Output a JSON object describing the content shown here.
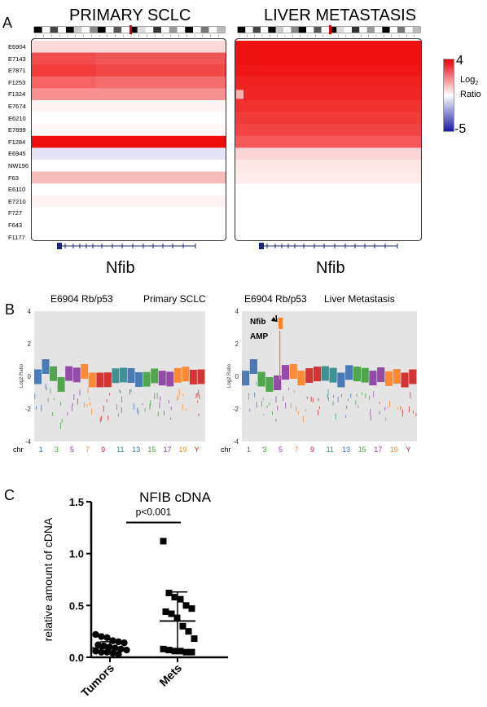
{
  "panels": {
    "a": "A",
    "b": "B",
    "c": "C"
  },
  "panelA": {
    "title_left": "PRIMARY SCLC",
    "title_right": "LIVER METASTASIS",
    "gene_left": "Nfib",
    "gene_right": "Nfib",
    "samples": [
      "E6904",
      "E7143",
      "E7871",
      "F1253",
      "F1324",
      "E7674",
      "E6210",
      "E7899",
      "F1284",
      "E6945",
      "NW196",
      "F63",
      "E6110",
      "E7210",
      "F727",
      "F643",
      "F1177"
    ],
    "legend": {
      "max": "4",
      "min": "-5",
      "label_main": "Log",
      "label_sub": "2",
      "label_ratio": "Ratio",
      "colors": {
        "high": "#e8000c",
        "mid": "#ffffff",
        "low": "#1a1aa8"
      }
    },
    "primary_colors": [
      "#fbd9d9",
      "#f24b4b",
      "#f23c3c",
      "#f56363",
      "#f89292",
      "#fff4f4",
      "#ffffff",
      "#fff7f7",
      "#ee0d0d",
      "#e4e4f6",
      "#ffffff",
      "#f8bbbb",
      "#ffffff",
      "#fff2f2",
      "#ffffff",
      "#ffffff",
      "#ffffff"
    ],
    "met_colors": [
      "#ee1111",
      "#ee1111",
      "#ee1616",
      "#ef2020",
      "#f02626",
      "#f13030",
      "#f13a3a",
      "#f24444",
      "#f45858",
      "#fbd5d5",
      "#fde6e6",
      "#fdeaea",
      "#ffffff",
      "#ffffff",
      "#ffffff",
      "#ffffff",
      "#ffffff"
    ]
  },
  "panelB": {
    "left": {
      "sample": "E6904 Rb/p53",
      "tissue": "Primary SCLC"
    },
    "right": {
      "sample": "E6904 Rb/p53",
      "tissue": "Liver Metastasis",
      "annot1": "Nfib",
      "annot2": "AMP"
    },
    "ylabel_main": "Log",
    "ylabel_sub": "2",
    "ylabel_rest": " Ratio",
    "yticks": [
      "4",
      "2",
      "0",
      "-2",
      "-4"
    ],
    "chr_label": "chr",
    "chromosomes": [
      "1",
      "3",
      "5",
      "7",
      "9",
      "11",
      "13",
      "15",
      "17",
      "19",
      "Y"
    ],
    "chrom_colors": [
      "#3a6fb0",
      "#3fa03a",
      "#8a3aa0",
      "#ff8020",
      "#d02020",
      "#2a8a8a",
      "#3a6fb0",
      "#3fa03a",
      "#8a3aa0",
      "#ff8020",
      "#d02020"
    ]
  },
  "panelC": {
    "title": "NFIB cDNA",
    "ylabel": "relative amount of cDNA",
    "pvalue": "p<0.001",
    "chart_data": {
      "type": "scatter",
      "title": "NFIB cDNA",
      "ylabel": "relative amount of cDNA",
      "ylim": [
        0,
        1.5
      ],
      "yticks": [
        "0.0",
        "0.5",
        "1.0",
        "1.5"
      ],
      "categories": [
        "Tumors",
        "Mets"
      ],
      "series": [
        {
          "name": "Tumors",
          "marker": "circle",
          "values": [
            0.22,
            0.2,
            0.19,
            0.16,
            0.15,
            0.14,
            0.12,
            0.11,
            0.1,
            0.09,
            0.08,
            0.07,
            0.06,
            0.05,
            0.05,
            0.04,
            0.03
          ],
          "mean": 0.09,
          "sd_upper": 0.15,
          "sd_lower": 0.04
        },
        {
          "name": "Mets",
          "marker": "square",
          "values": [
            1.12,
            0.62,
            0.58,
            0.56,
            0.5,
            0.47,
            0.44,
            0.42,
            0.38,
            0.3,
            0.25,
            0.18,
            0.08,
            0.07,
            0.06,
            0.06,
            0.05,
            0.05
          ],
          "mean": 0.35,
          "sd_upper": 0.63,
          "sd_lower": 0.07
        }
      ]
    }
  }
}
